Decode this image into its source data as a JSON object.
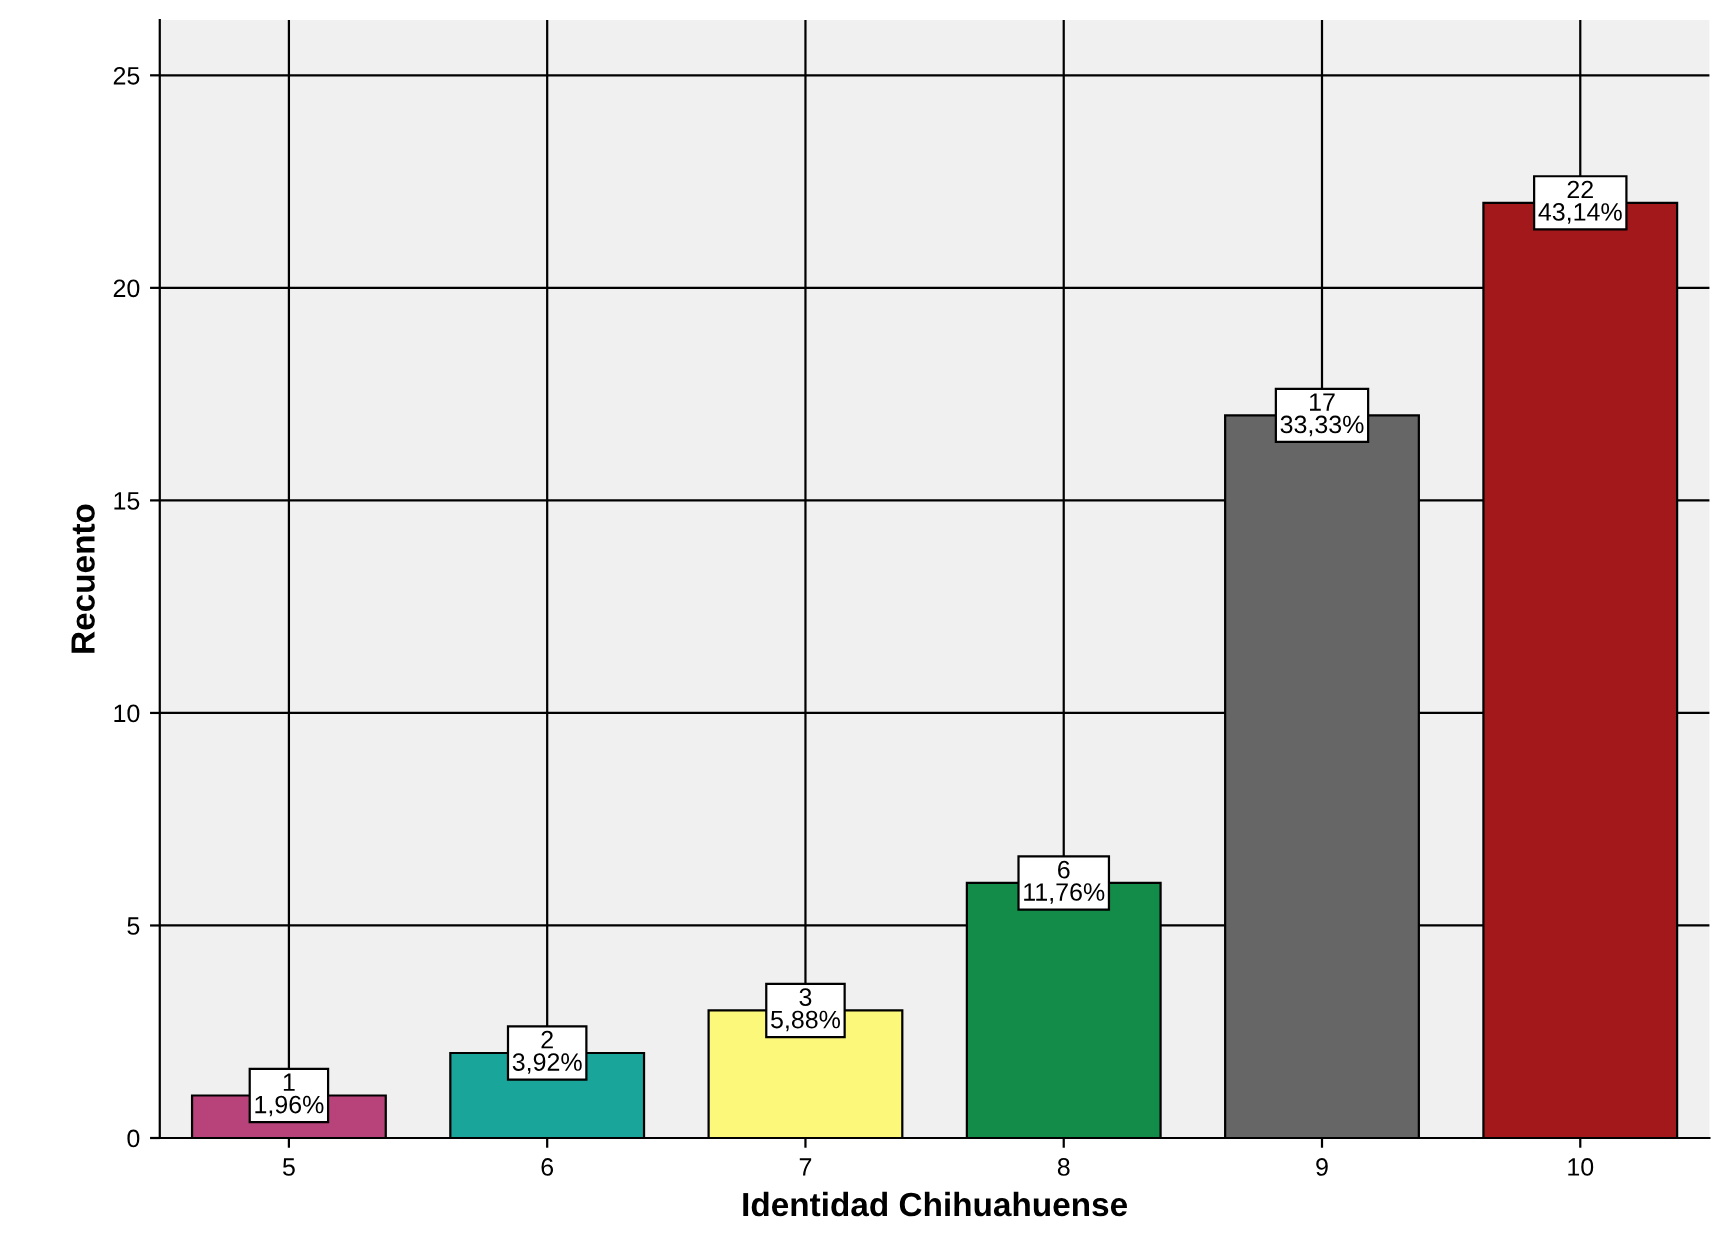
{
  "chart_data": {
    "type": "bar",
    "xlabel": "Identidad Chihuahuense",
    "ylabel": "Recuento",
    "categories": [
      "5",
      "6",
      "7",
      "8",
      "9",
      "10"
    ],
    "values": [
      1,
      2,
      3,
      6,
      17,
      22
    ],
    "colors": [
      "#b7437a",
      "#1aa59b",
      "#fbf87a",
      "#128c48",
      "#666666",
      "#a3181b"
    ],
    "value_labels": [
      "1\n1,96%",
      "2\n3,92%",
      "3\n5,88%",
      "6\n11,76%",
      "17\n33,33%",
      "22\n43,14%"
    ],
    "ylim": [
      0,
      26.3
    ],
    "yticks": [
      0,
      5,
      10,
      15,
      20,
      25
    ],
    "grid": true,
    "legend": false
  }
}
